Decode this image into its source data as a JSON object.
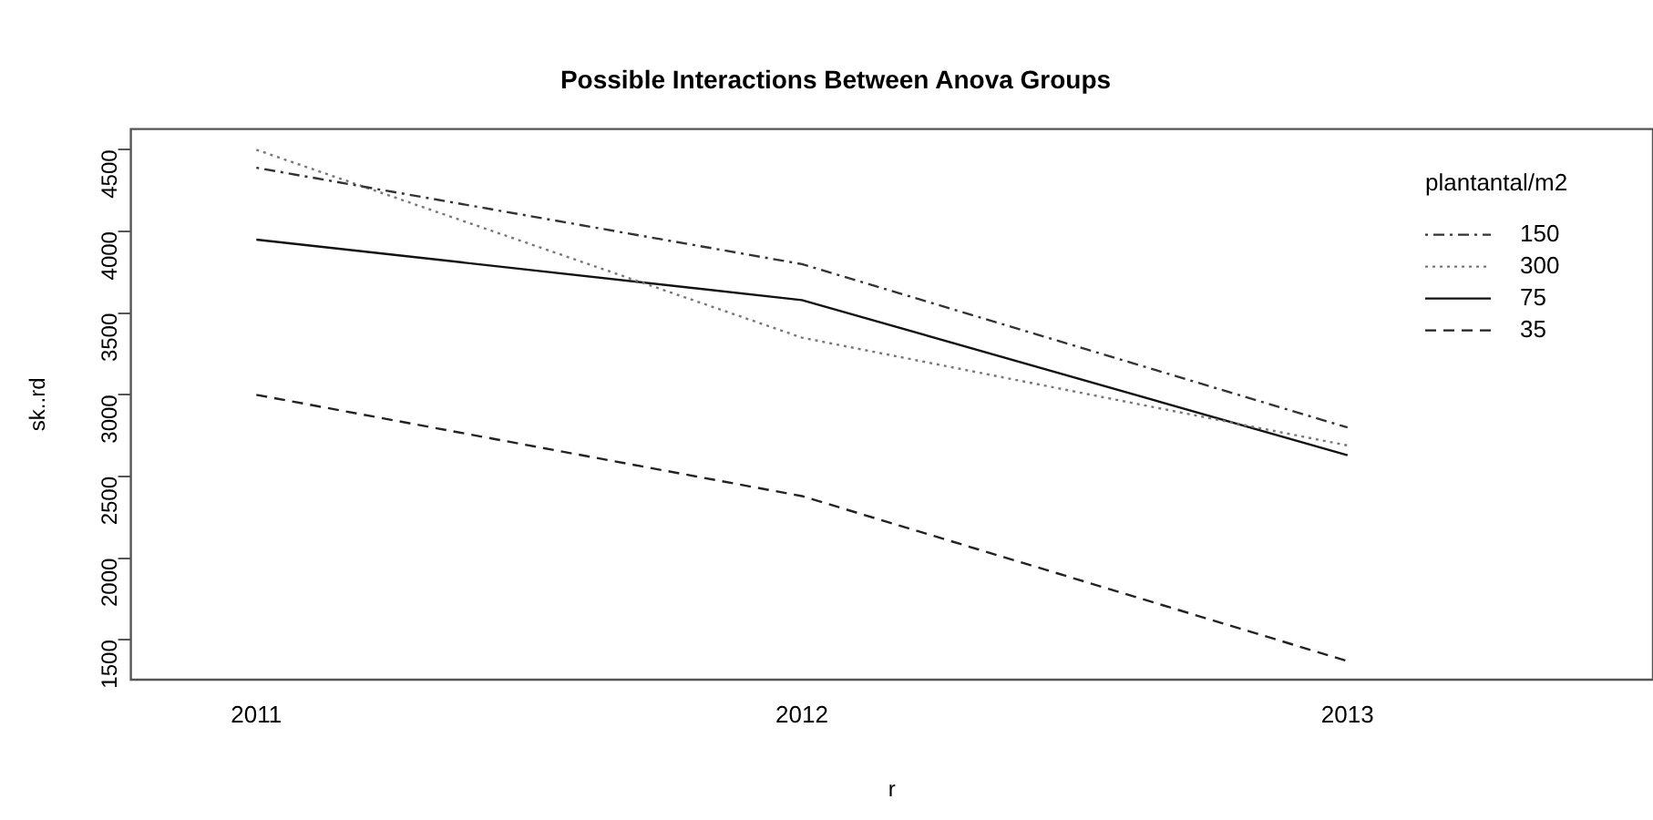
{
  "chart_data": {
    "type": "line",
    "title": "Possible Interactions Between Anova Groups",
    "xlabel": "r",
    "ylabel": "sk..rd",
    "legend_title": "plantantal/m2",
    "x": [
      2011,
      2012,
      2013
    ],
    "xlim": [
      2010.77,
      2013.56
    ],
    "xticks": [
      2011,
      2012,
      2013
    ],
    "ylim": [
      1256,
      4627
    ],
    "yticks": [
      1500,
      2000,
      2500,
      3000,
      3500,
      4000,
      4500
    ],
    "grid": false,
    "legend": "top right",
    "marker": "none",
    "series": [
      {
        "name": "150",
        "color": "#333333",
        "line_style": "dashdot",
        "values": [
          4390,
          3800,
          2800
        ]
      },
      {
        "name": "300",
        "color": "#777777",
        "line_style": "dotted",
        "values": [
          4500,
          3350,
          2690
        ]
      },
      {
        "name": "75",
        "color": "#111111",
        "line_style": "solid",
        "values": [
          3950,
          3580,
          2630
        ]
      },
      {
        "name": "35",
        "color": "#222222",
        "line_style": "dashed",
        "values": [
          3000,
          2380,
          1370
        ]
      }
    ]
  }
}
